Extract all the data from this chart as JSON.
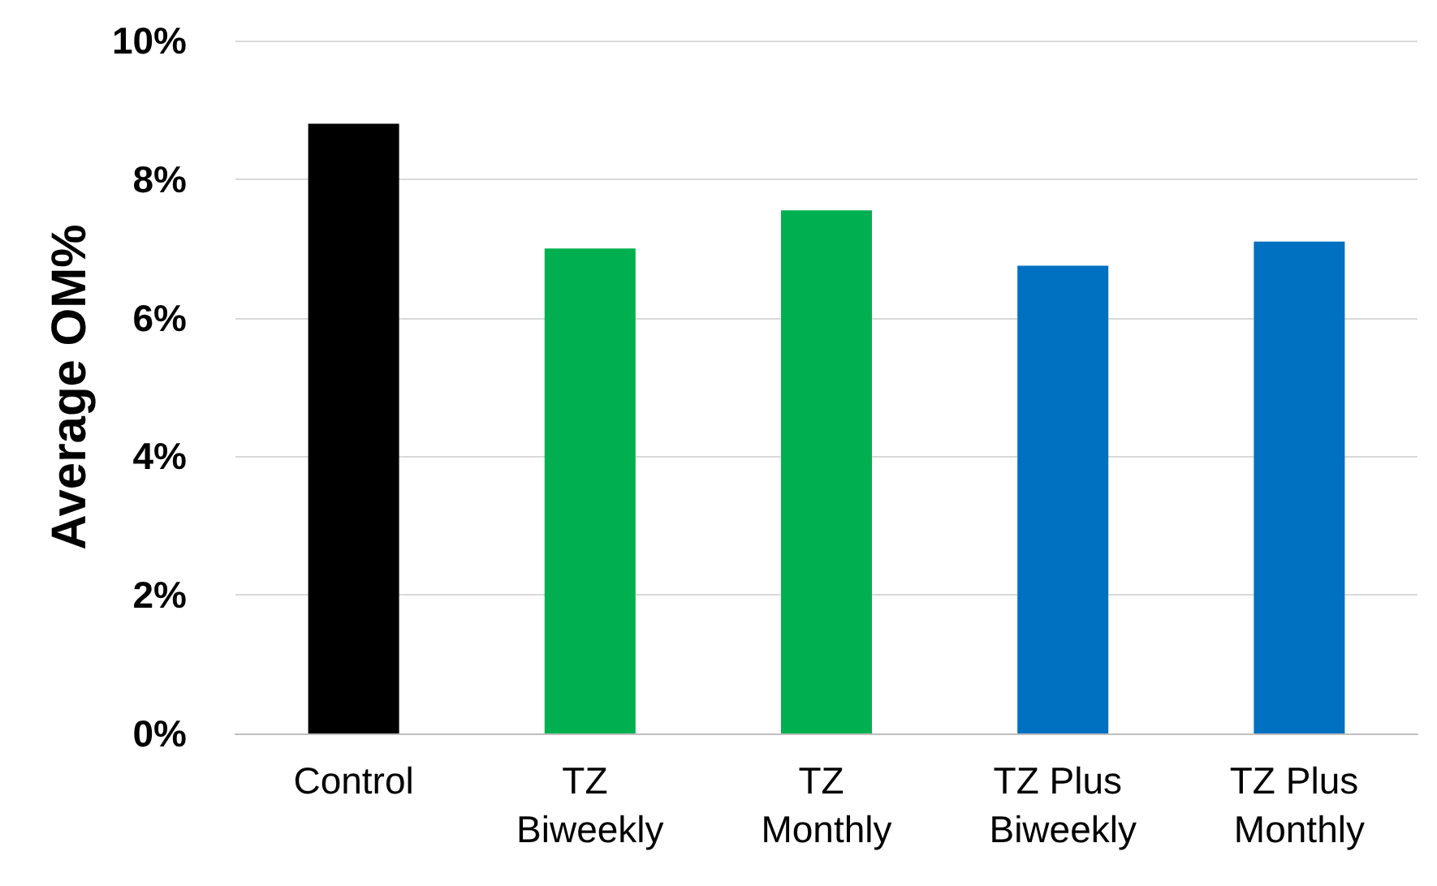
{
  "chart_data": {
    "type": "bar",
    "ylabel": "Average OM%",
    "categories": [
      "Control",
      "TZ Biweekly",
      "TZ Monthly",
      "TZ Plus Biweekly",
      "TZ Plus Monthly"
    ],
    "values": [
      8.8,
      7.0,
      7.55,
      6.75,
      7.1
    ],
    "colors": [
      "#000000",
      "#00b050",
      "#00b050",
      "#0070c0",
      "#0070c0"
    ],
    "ylim": [
      0,
      10
    ],
    "yticks": [
      {
        "value": 0,
        "label": "0%"
      },
      {
        "value": 2,
        "label": "2%"
      },
      {
        "value": 4,
        "label": "4%"
      },
      {
        "value": 6,
        "label": "6%"
      },
      {
        "value": 8,
        "label": "8%"
      },
      {
        "value": 10,
        "label": "10%"
      }
    ],
    "grid": true
  }
}
